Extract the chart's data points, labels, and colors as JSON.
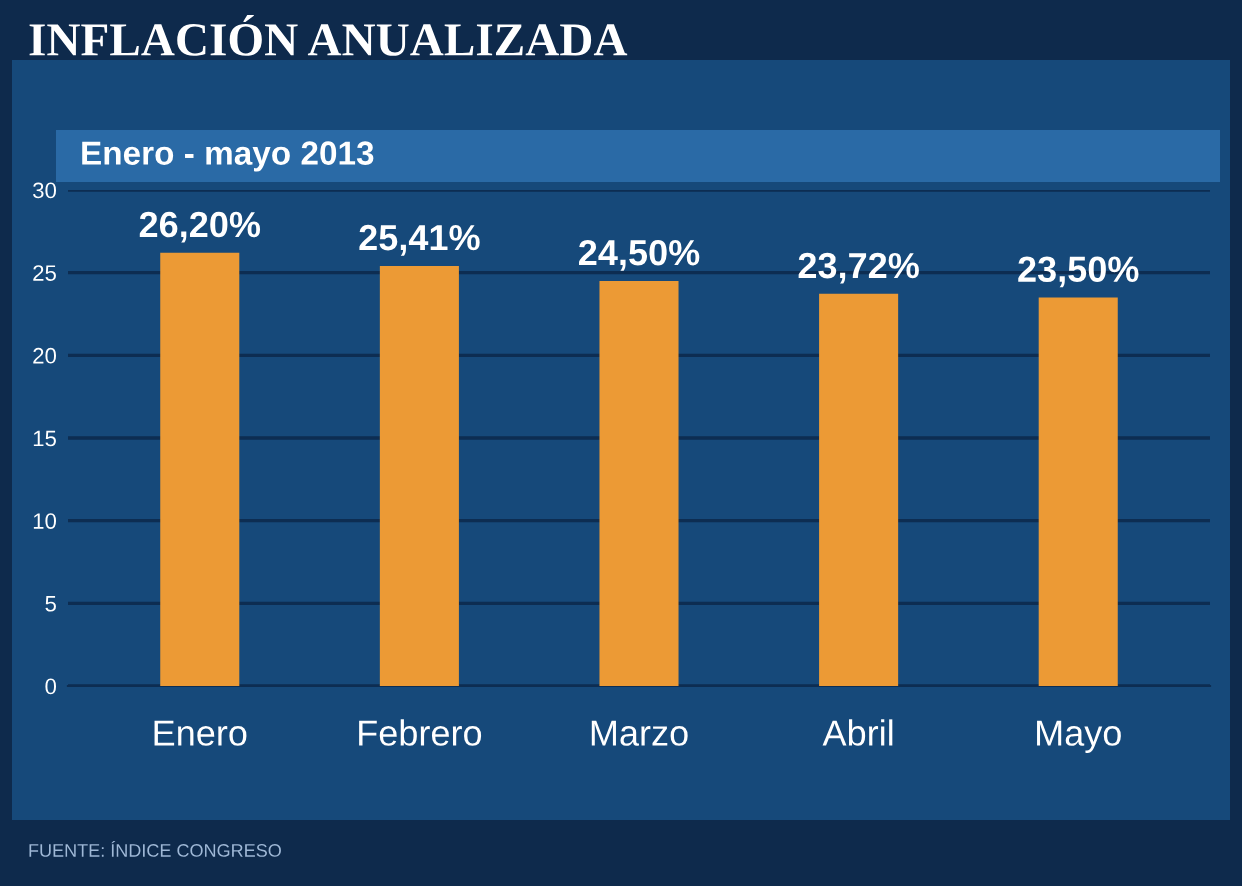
{
  "chart_data": {
    "type": "bar",
    "title": "INFLACIÓN ANUALIZADA",
    "subtitle": "Enero - mayo 2013",
    "categories": [
      "Enero",
      "Febrero",
      "Marzo",
      "Abril",
      "Mayo"
    ],
    "values": [
      26.2,
      25.41,
      24.5,
      23.72,
      23.5
    ],
    "value_labels": [
      "26,20%",
      "25,41%",
      "24,50%",
      "23,72%",
      "23,50%"
    ],
    "color": "#ec9a35",
    "ylim": [
      0,
      30
    ],
    "yticks": [
      0,
      5,
      10,
      15,
      20,
      25,
      30
    ],
    "grid": "y",
    "legend": false,
    "annotations": [
      "FUENTE: ÍNDICE CONGRESO"
    ]
  }
}
